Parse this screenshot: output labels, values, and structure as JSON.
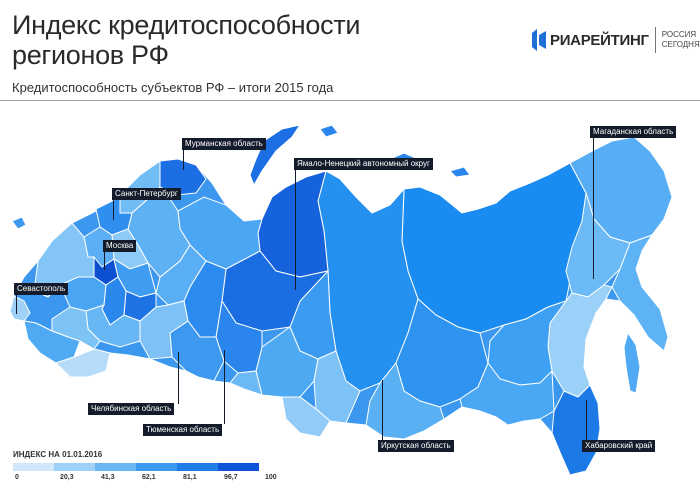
{
  "header": {
    "title": "Индекс кредитоспособности регионов РФ",
    "subtitle": "Кредитоспособность субъектов РФ – итоги 2015 года"
  },
  "logo": {
    "main": "РИАРЕЙТИНГ",
    "sub": "РОССИЯ СЕГОДНЯ"
  },
  "map": {
    "labels": {
      "murmansk": "Мурманская область",
      "yamal": "Ямало-Ненецкий автономный округ",
      "magadan": "Магаданская область",
      "spb": "Санкт-Петербург",
      "moscow": "Москва",
      "sevastopol": "Севастополь",
      "chelyabinsk": "Челябинская область",
      "tyumen": "Тюменская область",
      "irkutsk": "Иркутская область",
      "khabarovsk": "Хабаровский край"
    }
  },
  "legend": {
    "title": "ИНДЕКС НА 01.01.2016",
    "ticks": [
      "0",
      "20,3",
      "41,3",
      "62,1",
      "81,1",
      "96,7",
      "100"
    ],
    "colors": [
      "#cfe6fb",
      "#9fd0f8",
      "#6bb6f4",
      "#3d9af0",
      "#1f7ee8",
      "#0d55d6"
    ]
  }
}
